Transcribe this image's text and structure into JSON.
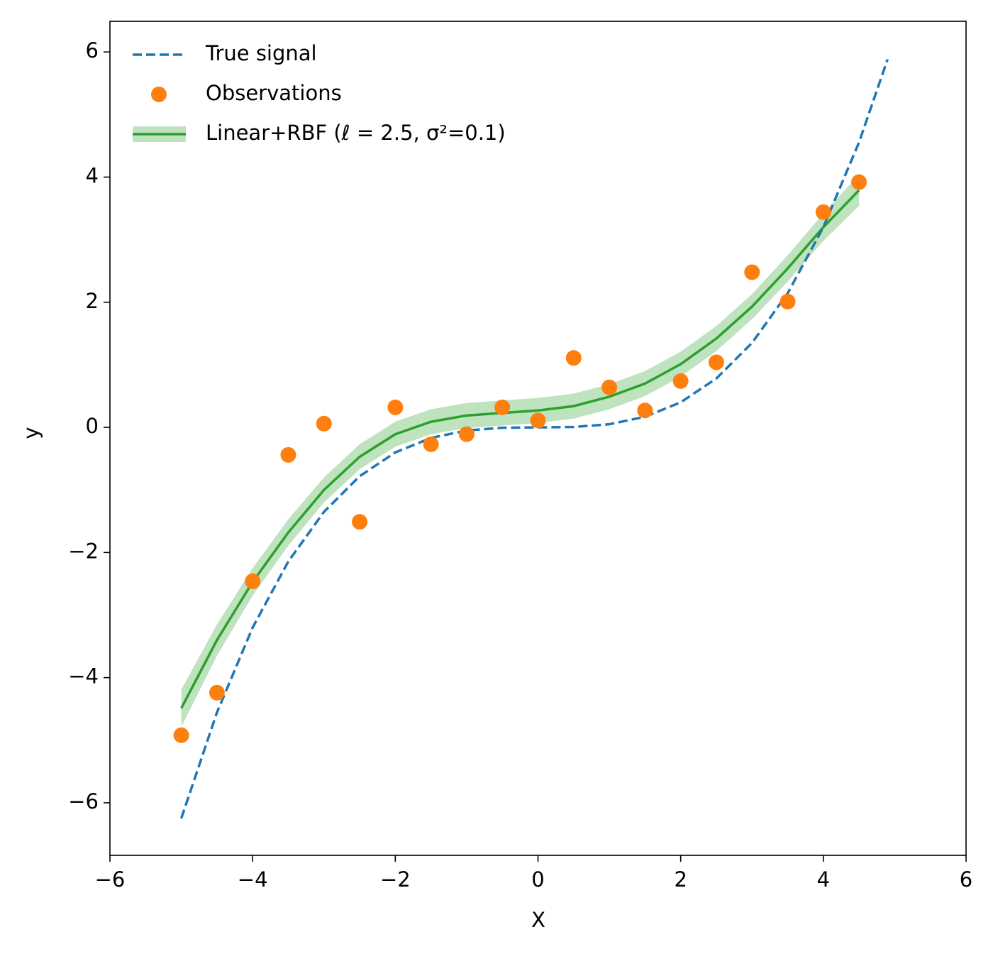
{
  "chart_data": {
    "type": "line",
    "xlabel": "X",
    "ylabel": "y",
    "xlim": [
      -6,
      6
    ],
    "ylim": [
      -6.84,
      6.49
    ],
    "xticks": [
      {
        "value": -6,
        "label": "−6"
      },
      {
        "value": -4,
        "label": "−4"
      },
      {
        "value": -2,
        "label": "−2"
      },
      0,
      2,
      4,
      6
    ],
    "yticks": [
      {
        "value": -6,
        "label": "−6"
      },
      {
        "value": -4,
        "label": "−4"
      },
      {
        "value": -2,
        "label": "−2"
      },
      0,
      2,
      4,
      6
    ],
    "legend": "upper left",
    "series": [
      {
        "name": "True signal",
        "color": "#1f77b4",
        "style": "dashed",
        "x": [
          -5,
          -4.5,
          -4,
          -3.5,
          -3,
          -2.5,
          -2,
          -1.5,
          -1,
          -0.5,
          0,
          0.5,
          1,
          1.5,
          2,
          2.5,
          3,
          3.5,
          4,
          4.5,
          4.9
        ],
        "values": [
          -6.25,
          -4.556,
          -3.2,
          -2.144,
          -1.35,
          -0.781,
          -0.4,
          -0.169,
          -0.05,
          -0.006,
          0,
          0.006,
          0.05,
          0.169,
          0.4,
          0.781,
          1.35,
          2.144,
          3.2,
          4.556,
          5.882
        ]
      },
      {
        "name": "Observations",
        "color": "#ff7f0e",
        "style": "markers",
        "x": [
          -5,
          -4.5,
          -4,
          -3.5,
          -3,
          -2.5,
          -2,
          -1.5,
          -1,
          -0.5,
          0,
          0.5,
          1,
          1.5,
          2,
          2.5,
          3,
          3.5,
          4,
          4.5
        ],
        "values": [
          -4.92,
          -4.24,
          -2.46,
          -0.44,
          0.06,
          -1.51,
          0.32,
          -0.27,
          -0.11,
          0.32,
          0.11,
          1.11,
          0.64,
          0.27,
          0.74,
          1.04,
          2.48,
          2.01,
          3.44,
          3.92
        ]
      },
      {
        "name": "Linear+RBF (ℓ = 2.5, σ²=0.1)",
        "color": "#2ca02c",
        "style": "solid",
        "x": [
          -5,
          -4.5,
          -4,
          -3.5,
          -3,
          -2.5,
          -2,
          -1.5,
          -1,
          -0.5,
          0,
          0.5,
          1,
          1.5,
          2,
          2.5,
          3,
          3.5,
          4,
          4.5
        ],
        "values": [
          -4.49,
          -3.4,
          -2.47,
          -1.68,
          -1.0,
          -0.47,
          -0.11,
          0.09,
          0.19,
          0.23,
          0.27,
          0.34,
          0.49,
          0.7,
          1.01,
          1.42,
          1.93,
          2.54,
          3.2,
          3.79
        ],
        "std": [
          0.3,
          0.25,
          0.22,
          0.21,
          0.2,
          0.2,
          0.2,
          0.2,
          0.2,
          0.2,
          0.2,
          0.2,
          0.2,
          0.2,
          0.2,
          0.2,
          0.2,
          0.21,
          0.22,
          0.25
        ]
      }
    ]
  }
}
